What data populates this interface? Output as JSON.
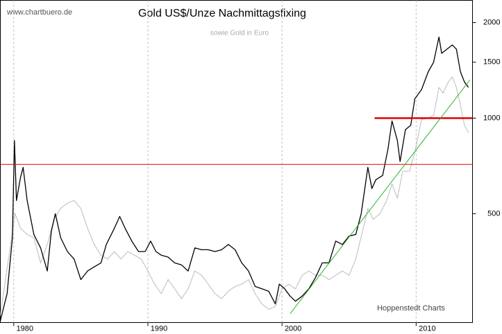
{
  "chart_data": {
    "type": "line",
    "title": "Gold US$/Unze Nachmittagsfixing",
    "subtitle": "sowie Gold in Euro",
    "source": "www.chartbuero.de",
    "credit": "Hoppenstedt Charts",
    "log_y": true,
    "grid": true,
    "xlim": [
      1979.0,
      2014.2
    ],
    "xticks": [
      1980,
      1990,
      2000,
      2010
    ],
    "ylim": [
      227,
      2350
    ],
    "yticks": [
      500,
      1000,
      1500,
      2000
    ],
    "series": [
      {
        "color": "#000000",
        "x": [
          1979.0,
          1979.5,
          1979.9,
          1980.05,
          1980.2,
          1980.5,
          1980.7,
          1981.0,
          1981.5,
          1982.0,
          1982.5,
          1982.8,
          1983.1,
          1983.5,
          1984.0,
          1984.5,
          1985.0,
          1985.5,
          1986.0,
          1986.5,
          1986.9,
          1987.5,
          1987.9,
          1988.3,
          1988.8,
          1989.3,
          1989.8,
          1990.2,
          1990.6,
          1991.0,
          1991.5,
          1992.0,
          1992.5,
          1993.0,
          1993.5,
          1994.0,
          1994.5,
          1995.0,
          1995.5,
          1996.0,
          1996.5,
          1997.0,
          1997.5,
          1998.0,
          1998.5,
          1999.0,
          1999.5,
          1999.8,
          2000.2,
          2000.6,
          2001.0,
          2001.5,
          2002.0,
          2002.5,
          2003.0,
          2003.5,
          2004.0,
          2004.5,
          2005.0,
          2005.5,
          2005.9,
          2006.4,
          2006.7,
          2007.0,
          2007.5,
          2007.9,
          2008.2,
          2008.6,
          2008.8,
          2009.2,
          2009.6,
          2009.9,
          2010.4,
          2010.9,
          2011.3,
          2011.7,
          2011.9,
          2012.3,
          2012.7,
          2013.0,
          2013.3,
          2013.6,
          2013.9
        ],
        "values": [
          230,
          280,
          420,
          850,
          550,
          650,
          700,
          550,
          430,
          390,
          330,
          440,
          500,
          420,
          380,
          360,
          310,
          330,
          340,
          350,
          400,
          450,
          490,
          450,
          410,
          380,
          380,
          410,
          380,
          370,
          365,
          350,
          345,
          330,
          390,
          385,
          385,
          380,
          385,
          400,
          385,
          350,
          330,
          295,
          290,
          285,
          260,
          300,
          290,
          275,
          265,
          275,
          290,
          315,
          350,
          350,
          410,
          400,
          425,
          430,
          500,
          700,
          600,
          640,
          660,
          800,
          980,
          850,
          730,
          920,
          950,
          1150,
          1230,
          1400,
          1500,
          1800,
          1600,
          1650,
          1700,
          1650,
          1400,
          1300,
          1250
        ]
      },
      {
        "color": "#a8a8a8",
        "x": [
          1979.0,
          1980.1,
          1980.5,
          1981.0,
          1981.5,
          1982.0,
          1982.5,
          1983.0,
          1983.5,
          1984.0,
          1984.5,
          1985.0,
          1985.5,
          1986.0,
          1986.5,
          1987.0,
          1987.5,
          1988.0,
          1988.5,
          1989.0,
          1989.5,
          1990.0,
          1990.5,
          1991.0,
          1991.5,
          1992.0,
          1992.5,
          1993.0,
          1993.5,
          1994.0,
          1994.5,
          1995.0,
          1995.5,
          1996.0,
          1996.5,
          1997.0,
          1997.5,
          1998.0,
          1998.5,
          1999.0,
          1999.5,
          2000.0,
          2000.5,
          2001.0,
          2001.5,
          2002.0,
          2002.5,
          2003.0,
          2003.5,
          2004.0,
          2004.5,
          2005.0,
          2005.5,
          2006.0,
          2006.4,
          2006.8,
          2007.3,
          2007.8,
          2008.2,
          2008.6,
          2009.0,
          2009.5,
          2009.9,
          2010.4,
          2010.9,
          2011.3,
          2011.7,
          2012.0,
          2012.4,
          2012.7,
          2013.0,
          2013.3,
          2013.6,
          2013.9
        ],
        "values": [
          240,
          500,
          450,
          430,
          420,
          350,
          400,
          480,
          520,
          540,
          550,
          520,
          450,
          400,
          370,
          360,
          380,
          360,
          380,
          370,
          360,
          330,
          300,
          280,
          310,
          290,
          270,
          290,
          330,
          320,
          300,
          280,
          270,
          285,
          295,
          300,
          310,
          280,
          260,
          250,
          255,
          290,
          300,
          290,
          320,
          330,
          320,
          320,
          310,
          320,
          330,
          320,
          360,
          440,
          520,
          480,
          500,
          550,
          620,
          560,
          680,
          680,
          780,
          990,
          1000,
          1020,
          1250,
          1200,
          1300,
          1350,
          1250,
          1100,
          950,
          900
        ]
      }
    ],
    "lines": [
      {
        "color": "#e00000",
        "width": 1,
        "x": [
          1979.0,
          2014.2
        ],
        "values": [
          715,
          715
        ]
      },
      {
        "color": "#e00000",
        "width": 2.5,
        "x": [
          2006.9,
          2014.2
        ],
        "values": [
          1000,
          1000
        ]
      },
      {
        "color": "#2bb52b",
        "width": 1,
        "x": [
          2000.6,
          2014.0
        ],
        "values": [
          242,
          1318
        ]
      }
    ]
  }
}
